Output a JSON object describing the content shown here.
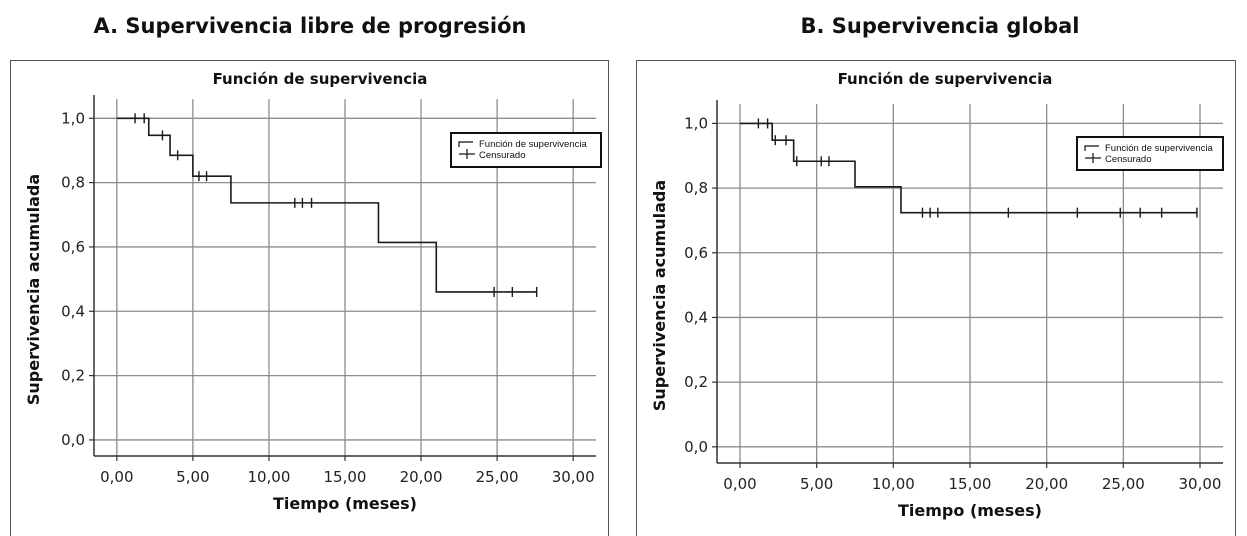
{
  "panels": [
    {
      "title": "A. Supervivencia libre de progresión"
    },
    {
      "title": "B. Supervivencia global"
    }
  ],
  "chart_data": [
    {
      "type": "line",
      "step": true,
      "title": "Función de supervivencia",
      "xlabel": "Tiempo (meses)",
      "ylabel": "Supervivencia acumulada",
      "xlim": [
        -1.5,
        31.5
      ],
      "ylim": [
        -0.05,
        1.06
      ],
      "xticks": [
        0,
        5,
        10,
        15,
        20,
        25,
        30
      ],
      "xtick_labels": [
        "0,00",
        "5,00",
        "10,00",
        "15,00",
        "20,00",
        "25,00",
        "30,00"
      ],
      "yticks": [
        0,
        0.2,
        0.4,
        0.6,
        0.8,
        1.0
      ],
      "ytick_labels": [
        "0,0",
        "0,2",
        "0,4",
        "0,6",
        "0,8",
        "1,0"
      ],
      "grid": true,
      "legend": {
        "position": "top-right",
        "entries": [
          "Función de supervivencia",
          "Censurado"
        ]
      },
      "series": [
        {
          "name": "Función de supervivencia",
          "x": [
            0,
            2.1,
            3.5,
            5.0,
            7.5,
            17.2,
            21.0,
            27.6
          ],
          "y": [
            1.0,
            0.947,
            0.885,
            0.82,
            0.737,
            0.614,
            0.46,
            0.46
          ]
        },
        {
          "name": "Censurado",
          "x": [
            1.2,
            1.8,
            3.0,
            4.0,
            5.4,
            5.9,
            11.7,
            12.2,
            12.8,
            24.8,
            26.0,
            27.6
          ],
          "y": [
            1.0,
            1.0,
            0.947,
            0.885,
            0.82,
            0.82,
            0.737,
            0.737,
            0.737,
            0.46,
            0.46,
            0.46
          ]
        }
      ]
    },
    {
      "type": "line",
      "step": true,
      "title": "Función de supervivencia",
      "xlabel": "Tiempo (meses)",
      "ylabel": "Supervivencia acumulada",
      "xlim": [
        -1.5,
        31.5
      ],
      "ylim": [
        -0.05,
        1.06
      ],
      "xticks": [
        0,
        5,
        10,
        15,
        20,
        25,
        30
      ],
      "xtick_labels": [
        "0,00",
        "5,00",
        "10,00",
        "15,00",
        "20,00",
        "25,00",
        "30,00"
      ],
      "yticks": [
        0,
        0.2,
        0.4,
        0.6,
        0.8,
        1.0
      ],
      "ytick_labels": [
        "0,0",
        "0,2",
        "0,4",
        "0,6",
        "0,8",
        "1,0"
      ],
      "grid": true,
      "legend": {
        "position": "top-right",
        "entries": [
          "Función de supervivencia",
          "Censurado"
        ]
      },
      "series": [
        {
          "name": "Función de supervivencia",
          "x": [
            0,
            2.1,
            3.5,
            7.5,
            10.5,
            29.8
          ],
          "y": [
            1.0,
            0.948,
            0.883,
            0.804,
            0.724,
            0.724
          ]
        },
        {
          "name": "Censurado",
          "x": [
            1.2,
            1.8,
            2.3,
            3.0,
            3.7,
            5.3,
            5.8,
            11.9,
            12.4,
            12.9,
            17.5,
            22.0,
            24.8,
            26.1,
            27.5,
            29.8
          ],
          "y": [
            1.0,
            1.0,
            0.948,
            0.948,
            0.883,
            0.883,
            0.883,
            0.724,
            0.724,
            0.724,
            0.724,
            0.724,
            0.724,
            0.724,
            0.724,
            0.724
          ]
        }
      ]
    }
  ]
}
